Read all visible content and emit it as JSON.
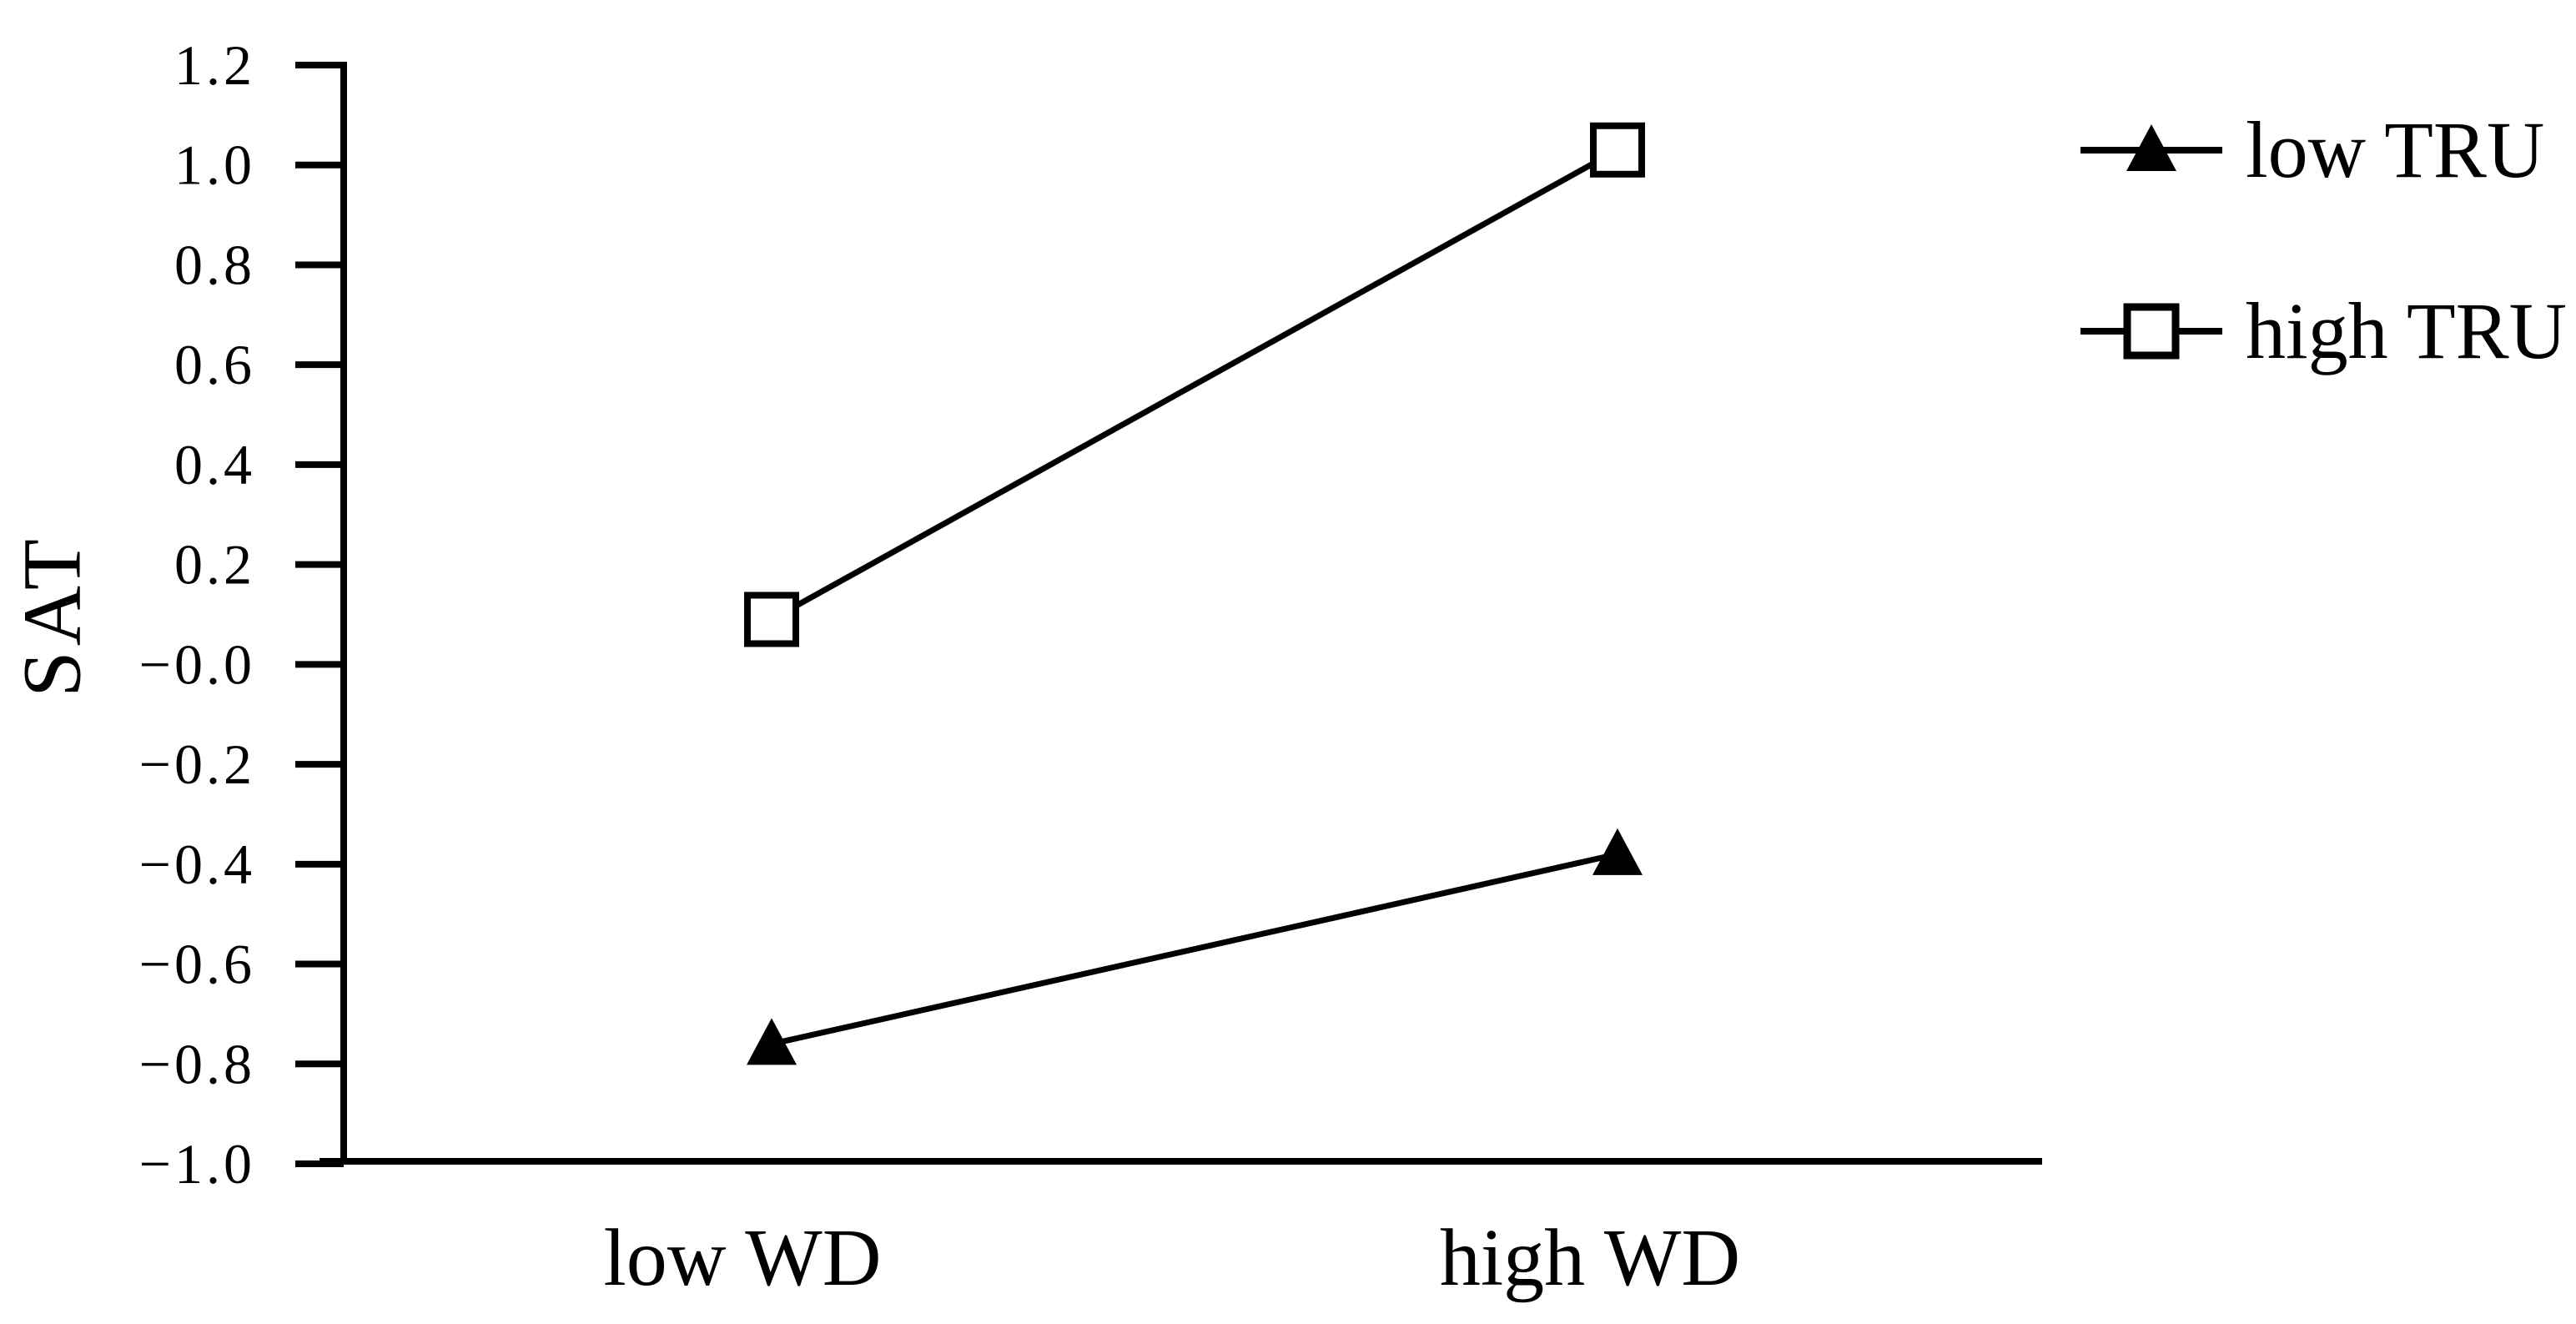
{
  "chart_data": {
    "type": "line",
    "categories": [
      "low WD",
      "high WD"
    ],
    "series": [
      {
        "name": "low TRU",
        "marker": "filled-triangle",
        "values": [
          -0.76,
          -0.38
        ]
      },
      {
        "name": "high TRU",
        "marker": "open-square",
        "values": [
          0.09,
          1.03
        ]
      }
    ],
    "title": "",
    "xlabel": "",
    "ylabel": "SAT",
    "ylim": [
      -1.0,
      1.2
    ],
    "ytick_step": 0.2,
    "ytick_format_decimals": 1,
    "grid": false,
    "legend_position": "right",
    "colors": {
      "foreground": "#000000",
      "background": "#ffffff"
    }
  }
}
